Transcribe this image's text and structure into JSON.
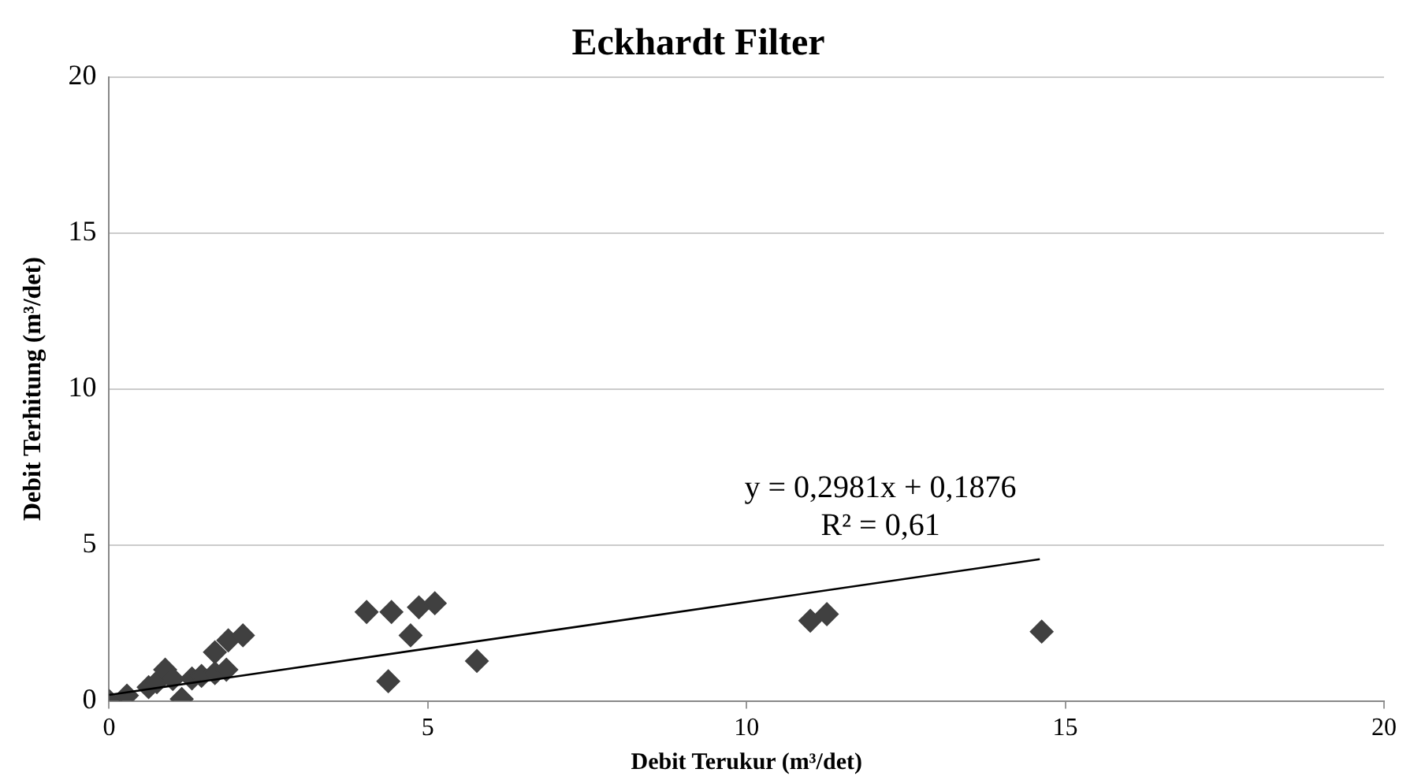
{
  "chart_data": {
    "type": "scatter",
    "title": "Eckhardt Filter",
    "xlabel": "Debit Terukur (m³/det)",
    "ylabel": "Debit Terhitung (m³/det)",
    "xlim": [
      0,
      20
    ],
    "xticks": [
      0,
      5,
      10,
      15,
      20
    ],
    "ylim": [
      0,
      20
    ],
    "yticks": [
      0,
      5,
      10,
      15,
      20
    ],
    "grid": "y",
    "legend": false,
    "annotations": [
      "y = 0,2981x + 0,1876",
      "R² = 0,61"
    ],
    "series": [
      {
        "marker": "diamond",
        "color": "#404040",
        "x": [
          0,
          0.28,
          0.62,
          0.75,
          0.88,
          1.0,
          1.14,
          1.3,
          1.45,
          1.66,
          1.84,
          1.66,
          1.87,
          2.1,
          4.04,
          4.43,
          4.86,
          5.11,
          4.73,
          4.38,
          5.77,
          11.0,
          11.26,
          14.63
        ],
        "values": [
          0,
          0.17,
          0.44,
          0.6,
          1.0,
          0.7,
          0.06,
          0.72,
          0.8,
          0.89,
          1.0,
          1.56,
          1.94,
          2.1,
          2.85,
          2.85,
          3.0,
          3.13,
          2.1,
          0.63,
          1.28,
          2.57,
          2.78,
          2.22
        ]
      },
      {
        "type": "line",
        "marker": "none",
        "color": "#000000",
        "x": [
          0,
          14.6
        ],
        "values": [
          0.19,
          4.54
        ]
      }
    ]
  }
}
